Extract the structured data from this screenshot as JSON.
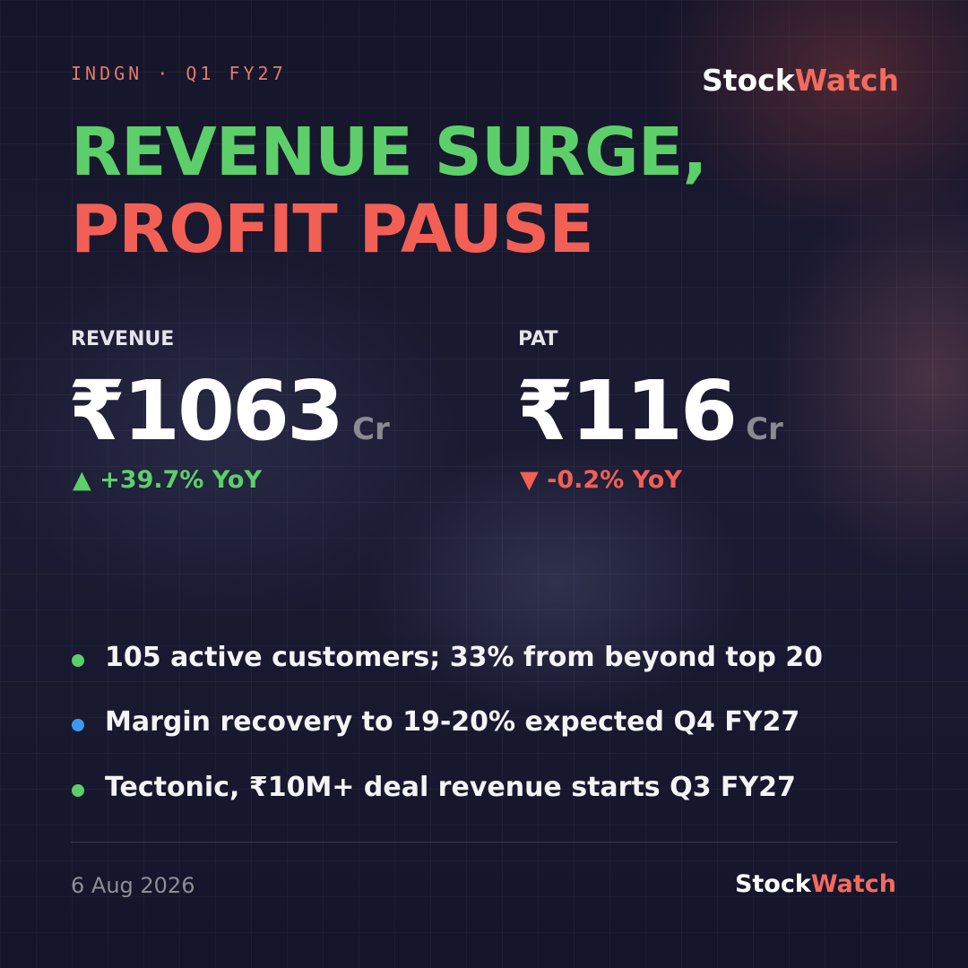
{
  "header": {
    "ticker": "INDGN · Q1 FY27",
    "brand": {
      "first": "Stock",
      "second": "Watch"
    }
  },
  "title": {
    "line1": "REVENUE SURGE,",
    "line2": "PROFIT PAUSE"
  },
  "metrics": [
    {
      "label": "REVENUE",
      "value": "₹1063",
      "unit": "Cr",
      "change": "▲ +39.7% YoY"
    },
    {
      "label": "PAT",
      "value": "₹116",
      "unit": "Cr",
      "change": "▼ -0.2% YoY"
    }
  ],
  "bullets": [
    "105 active customers; 33% from beyond top 20",
    "Margin recovery to 19-20% expected Q4 FY27",
    "Tectonic, ₹10M+ deal revenue starts Q3 FY27"
  ],
  "footer": {
    "date": "6 Aug 2026"
  }
}
